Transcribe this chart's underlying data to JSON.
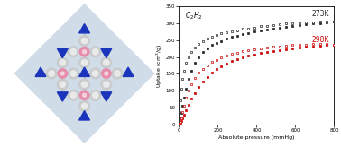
{
  "title": "C$_2$H$_2$",
  "xlabel": "Absolute pressure (mmHg)",
  "ylabel": "Uptake (cm$^3$/g)",
  "label_273K": "273K",
  "label_298K": "298K",
  "ylim": [
    0,
    350
  ],
  "xlim": [
    0,
    800
  ],
  "yticks": [
    0,
    50,
    100,
    150,
    200,
    250,
    300,
    350
  ],
  "xticks": [
    0,
    200,
    400,
    600,
    800
  ],
  "color_273K": "#222222",
  "color_298K": "#cc0000",
  "x_ads_273": [
    2,
    5,
    10,
    17,
    25,
    35,
    48,
    62,
    80,
    100,
    122,
    145,
    168,
    192,
    218,
    245,
    272,
    300,
    328,
    358,
    390,
    420,
    452,
    485,
    518,
    552,
    586,
    620,
    655,
    690,
    726,
    762,
    800
  ],
  "y_ads_273": [
    8,
    18,
    34,
    55,
    78,
    105,
    135,
    160,
    182,
    200,
    215,
    225,
    235,
    242,
    248,
    254,
    259,
    263,
    267,
    271,
    275,
    278,
    281,
    284,
    287,
    289,
    292,
    294,
    297,
    299,
    301,
    303,
    305
  ],
  "x_des_273": [
    800,
    762,
    726,
    690,
    655,
    620,
    586,
    552,
    518,
    485,
    452,
    420,
    390,
    358,
    328,
    300,
    272,
    245,
    218,
    192,
    168,
    145,
    122,
    100,
    80,
    62,
    48,
    35,
    25,
    17,
    10,
    5,
    2
  ],
  "y_des_273": [
    305,
    305,
    305,
    304,
    303,
    302,
    301,
    299,
    297,
    295,
    293,
    291,
    288,
    285,
    283,
    280,
    277,
    274,
    270,
    265,
    260,
    254,
    247,
    238,
    228,
    215,
    200,
    182,
    160,
    135,
    105,
    70,
    35
  ],
  "x_ads_298": [
    2,
    5,
    10,
    17,
    25,
    35,
    48,
    62,
    80,
    100,
    122,
    145,
    168,
    192,
    218,
    245,
    272,
    300,
    328,
    358,
    390,
    420,
    452,
    485,
    518,
    552,
    586,
    620,
    655,
    690,
    726,
    762,
    800
  ],
  "y_ads_298": [
    2,
    5,
    10,
    18,
    28,
    42,
    58,
    75,
    93,
    110,
    126,
    140,
    153,
    163,
    172,
    180,
    187,
    193,
    198,
    203,
    207,
    211,
    215,
    218,
    221,
    224,
    226,
    228,
    230,
    232,
    234,
    235,
    237
  ],
  "x_des_298": [
    800,
    762,
    726,
    690,
    655,
    620,
    586,
    552,
    518,
    485,
    452,
    420,
    390,
    358,
    328,
    300,
    272,
    245,
    218,
    192,
    168,
    145,
    122,
    100,
    80,
    62,
    48,
    35,
    25,
    17,
    10,
    5,
    2
  ],
  "y_des_298": [
    237,
    238,
    238,
    238,
    237,
    236,
    235,
    234,
    232,
    230,
    228,
    226,
    223,
    220,
    217,
    213,
    209,
    204,
    199,
    192,
    185,
    176,
    165,
    153,
    138,
    120,
    100,
    78,
    55,
    35,
    18,
    8,
    2
  ],
  "figure_width": 3.78,
  "figure_height": 1.64,
  "dpi": 100,
  "bg_color": "#d0dce8",
  "ring_color": "#909090",
  "ring_fill": "#c8c8c8",
  "blue_color": "#1a35bb",
  "pink_color": "#e88aaa",
  "bond_color": "#707070"
}
